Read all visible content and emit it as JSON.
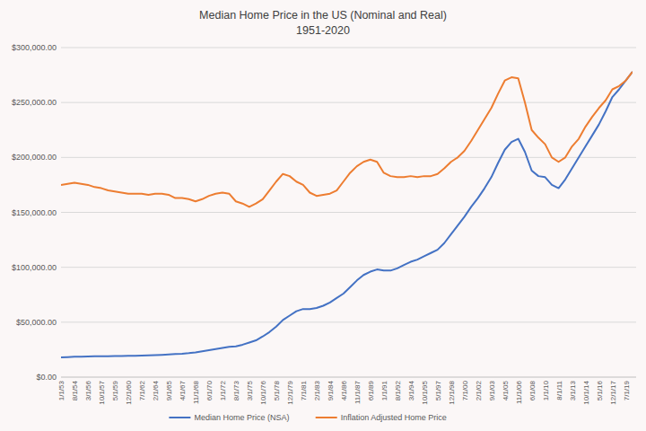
{
  "chart_data": {
    "type": "line",
    "title": "Median Home Price in the US (Nominal and Real)",
    "subtitle": "1951-2020",
    "categories": [
      "1/1/53",
      null,
      "8/1/54",
      null,
      "3/1/56",
      null,
      "10/1/57",
      null,
      "5/1/59",
      null,
      "12/1/60",
      null,
      "7/1/62",
      null,
      "2/1/64",
      null,
      "9/1/65",
      null,
      "4/1/67",
      null,
      "11/1/68",
      null,
      "6/1/70",
      null,
      "1/1/72",
      null,
      "8/1/73",
      null,
      "3/1/75",
      null,
      "10/1/76",
      null,
      "5/1/78",
      null,
      "12/1/79",
      null,
      "7/1/81",
      null,
      "2/1/83",
      null,
      "9/1/84",
      null,
      "4/1/86",
      null,
      "11/1/87",
      null,
      "6/1/89",
      null,
      "1/1/91",
      null,
      "8/1/92",
      null,
      "3/1/94",
      null,
      "10/1/95",
      null,
      "5/1/97",
      null,
      "12/1/98",
      null,
      "7/1/00",
      null,
      "2/1/02",
      null,
      "9/1/03",
      null,
      "4/1/05",
      null,
      "11/1/06",
      null,
      "6/1/08",
      null,
      "1/1/10",
      null,
      "8/1/11",
      null,
      "3/1/13",
      null,
      "10/1/14",
      null,
      "5/1/16",
      null,
      "12/1/17",
      null,
      "7/1/19",
      null
    ],
    "series": [
      {
        "name": "Median Home Price (NSA)",
        "color": "#4472c4",
        "values": [
          18000,
          18200,
          18500,
          18600,
          18800,
          19000,
          19000,
          19100,
          19200,
          19300,
          19400,
          19500,
          19600,
          19800,
          20000,
          20300,
          20600,
          21000,
          21300,
          21800,
          22500,
          23500,
          24500,
          25500,
          26500,
          27500,
          28000,
          29500,
          31500,
          33500,
          37000,
          41000,
          46000,
          52000,
          56000,
          60000,
          62000,
          62000,
          63000,
          65000,
          68000,
          72000,
          76000,
          82000,
          88000,
          93000,
          96000,
          98000,
          97000,
          97000,
          99000,
          102000,
          105000,
          107000,
          110000,
          113000,
          116000,
          122000,
          130000,
          138000,
          146000,
          155000,
          163000,
          172000,
          182000,
          195000,
          207000,
          214000,
          217000,
          205000,
          188000,
          183000,
          182000,
          175000,
          172000,
          180000,
          190000,
          200000,
          210000,
          220000,
          230000,
          242000,
          255000,
          262000,
          270000,
          278000
        ]
      },
      {
        "name": "Inflation Adjusted Home Price",
        "color": "#ed7d31",
        "values": [
          175000,
          176000,
          177000,
          176000,
          175000,
          173000,
          172000,
          170000,
          169000,
          168000,
          167000,
          167000,
          167000,
          166000,
          167000,
          167000,
          166000,
          163000,
          163000,
          162000,
          160000,
          162000,
          165000,
          167000,
          168000,
          167000,
          160000,
          158000,
          155000,
          158000,
          162000,
          170000,
          178000,
          185000,
          183000,
          178000,
          175000,
          168000,
          165000,
          166000,
          167000,
          170000,
          178000,
          186000,
          192000,
          196000,
          198000,
          196000,
          186000,
          183000,
          182000,
          182000,
          183000,
          182000,
          183000,
          183000,
          185000,
          190000,
          196000,
          200000,
          206000,
          215000,
          225000,
          235000,
          245000,
          258000,
          270000,
          273000,
          272000,
          250000,
          225000,
          218000,
          212000,
          200000,
          196000,
          200000,
          210000,
          217000,
          228000,
          237000,
          245000,
          252000,
          262000,
          265000,
          270000,
          278000
        ]
      }
    ],
    "ylim": [
      0,
      300000
    ],
    "yticks": [
      {
        "value": 0,
        "label": "$0.00"
      },
      {
        "value": 50000,
        "label": "$50,000.00"
      },
      {
        "value": 100000,
        "label": "$100,000.00"
      },
      {
        "value": 150000,
        "label": "$150,000.00"
      },
      {
        "value": 200000,
        "label": "$200,000.00"
      },
      {
        "value": 250000,
        "label": "$250,000.00"
      },
      {
        "value": 300000,
        "label": "$300,000.00"
      }
    ],
    "grid": true,
    "legend": "bottom"
  }
}
